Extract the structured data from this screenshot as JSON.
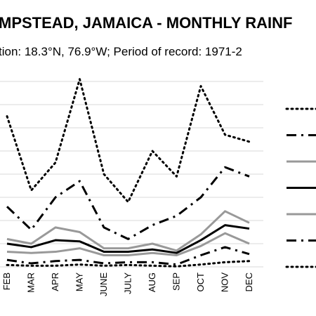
{
  "chart_data": {
    "type": "line",
    "title": "MPSTEAD, JAMAICA - MONTHLY RAINF",
    "subtitle": "tion: 18.3°N, 76.9°W; Period of record: 1971-2",
    "categories": [
      "FEB",
      "MAR",
      "APR",
      "MAY",
      "JUNE",
      "JULY",
      "AUG",
      "SEP",
      "OCT",
      "NOV",
      "DEC"
    ],
    "ylim": [
      0,
      8
    ],
    "grid": true,
    "legend_position": "right",
    "series": [
      {
        "color": "#000000",
        "dash": "dotted",
        "width": 3,
        "values": [
          6.5,
          3.3,
          4.5,
          8.1,
          4.0,
          2.8,
          5.0,
          3.9,
          7.8,
          5.7,
          5.4
        ]
      },
      {
        "color": "#000000",
        "dash": "dashdot",
        "width": 3,
        "values": [
          2.6,
          1.6,
          3.0,
          3.7,
          1.7,
          1.2,
          1.8,
          2.2,
          3.0,
          4.3,
          3.9
        ]
      },
      {
        "color": "#999999",
        "dash": "solid",
        "width": 3,
        "values": [
          1.2,
          1.0,
          1.7,
          1.5,
          0.8,
          0.8,
          1.0,
          0.7,
          1.4,
          2.4,
          1.9
        ]
      },
      {
        "color": "#000000",
        "dash": "solid",
        "width": 3,
        "values": [
          1.0,
          0.85,
          1.15,
          1.1,
          0.65,
          0.65,
          0.75,
          0.6,
          1.15,
          1.8,
          1.65
        ]
      },
      {
        "color": "#999999",
        "dash": "solid",
        "width": 3,
        "values": [
          0.65,
          0.6,
          0.65,
          0.8,
          0.5,
          0.5,
          0.6,
          0.5,
          0.9,
          1.45,
          1.0
        ]
      },
      {
        "color": "#000000",
        "dash": "dashdot",
        "width": 3,
        "values": [
          0.3,
          0.15,
          0.25,
          0.3,
          0.15,
          0.2,
          0.2,
          0.1,
          0.5,
          0.85,
          0.55
        ]
      },
      {
        "color": "#000000",
        "dash": "dotted",
        "width": 3,
        "values": [
          0.08,
          0.05,
          0.05,
          0.1,
          0.05,
          0.08,
          0.05,
          0.02,
          0.1,
          0.2,
          0.25
        ]
      }
    ]
  }
}
